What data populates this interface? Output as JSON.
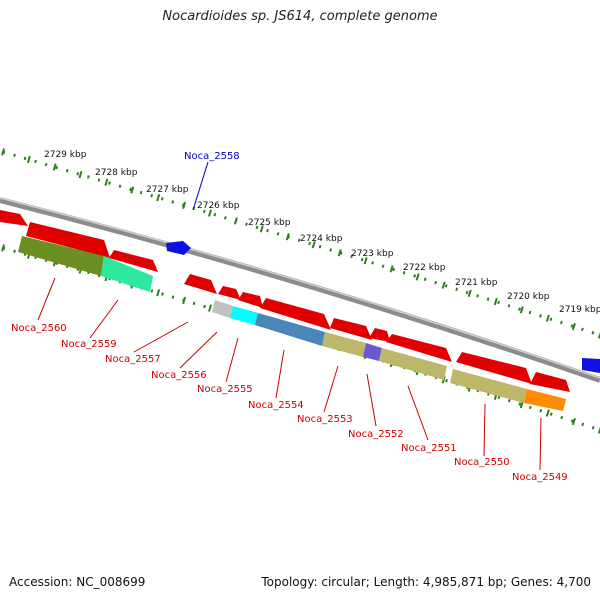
{
  "title": "Nocardioides sp. JS614, complete genome",
  "footer": {
    "accession": "Accession: NC_008699",
    "summary": "Topology: circular; Length: 4,985,871 bp; Genes: 4,700"
  },
  "colors": {
    "backbone": "#8c8c8c",
    "tick": "#2e7d1e",
    "gene_forward": "#1010e0",
    "gene_reverse": "#e00000",
    "label_forward": "#0000c0",
    "label_reverse": "#cc0000"
  },
  "scale_labels": [
    "2729 kbp",
    "2728 kbp",
    "2727 kbp",
    "2726 kbp",
    "2725 kbp",
    "2724 kbp",
    "2723 kbp",
    "2722 kbp",
    "2721 kbp",
    "2720 kbp",
    "2719 kbp"
  ],
  "gene_labels": [
    {
      "name": "Noca_2558",
      "strand": "forward"
    },
    {
      "name": "Noca_2560",
      "strand": "reverse"
    },
    {
      "name": "Noca_2559",
      "strand": "reverse"
    },
    {
      "name": "Noca_2557",
      "strand": "reverse"
    },
    {
      "name": "Noca_2556",
      "strand": "reverse"
    },
    {
      "name": "Noca_2555",
      "strand": "reverse"
    },
    {
      "name": "Noca_2554",
      "strand": "reverse"
    },
    {
      "name": "Noca_2553",
      "strand": "reverse"
    },
    {
      "name": "Noca_2552",
      "strand": "reverse"
    },
    {
      "name": "Noca_2551",
      "strand": "reverse"
    },
    {
      "name": "Noca_2550",
      "strand": "reverse"
    },
    {
      "name": "Noca_2549",
      "strand": "reverse"
    }
  ]
}
